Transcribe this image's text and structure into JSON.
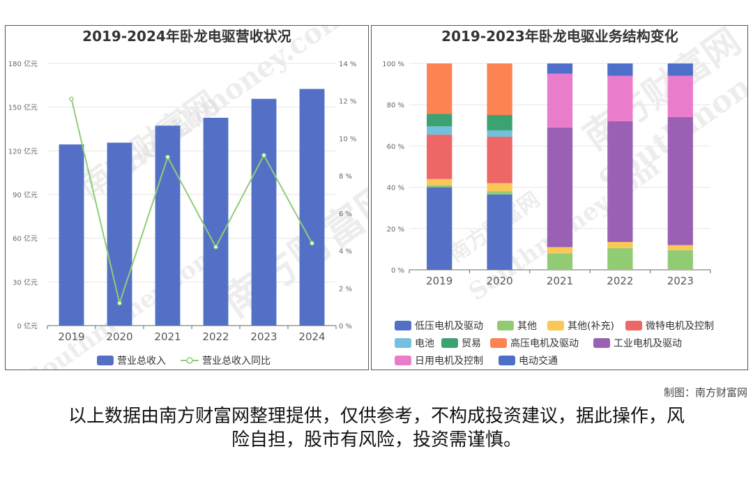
{
  "chart_data": [
    {
      "type": "bar+line",
      "title": "2019-2024年卧龙电驱营收状况",
      "categories": [
        "2019",
        "2020",
        "2021",
        "2022",
        "2023",
        "2024"
      ],
      "series": [
        {
          "name": "营业总收入",
          "type": "bar",
          "axis": "left",
          "color": "#5470c6",
          "values": [
            124.4,
            125.6,
            137.3,
            142.7,
            155.7,
            162.5
          ]
        },
        {
          "name": "营业总收入同比",
          "type": "line",
          "axis": "right",
          "color": "#91cc75",
          "values": [
            12.1,
            1.2,
            9.0,
            4.2,
            9.1,
            4.4
          ]
        }
      ],
      "y_left": {
        "min": 0,
        "max": 180,
        "ticks": [
          "0 亿元",
          "30 亿元",
          "60 亿元",
          "90 亿元",
          "120 亿元",
          "150 亿元",
          "180 亿元"
        ]
      },
      "y_right": {
        "min": 0,
        "max": 14,
        "ticks": [
          "0 %",
          "2 %",
          "4 %",
          "6 %",
          "8 %",
          "10 %",
          "12 %",
          "14 %"
        ]
      },
      "grid": true,
      "legend": "bottom"
    },
    {
      "type": "stacked-bar",
      "title": "2019-2023年卧龙电驱业务结构变化",
      "categories": [
        "2019",
        "2020",
        "2021",
        "2022",
        "2023"
      ],
      "series": [
        {
          "name": "低压电机及驱动",
          "color": "#5470c6",
          "values": [
            40,
            36.5,
            0,
            0,
            0
          ]
        },
        {
          "name": "其他",
          "color": "#91cc75",
          "values": [
            1,
            1.5,
            8,
            10.5,
            9.5
          ]
        },
        {
          "name": "其他(补充)",
          "color": "#fac858",
          "values": [
            3,
            4,
            3,
            3,
            2.5
          ]
        },
        {
          "name": "微特电机及控制",
          "color": "#ee6666",
          "values": [
            21.5,
            22.5,
            0,
            0,
            0
          ]
        },
        {
          "name": "电池",
          "color": "#73c0de",
          "values": [
            4,
            3,
            0,
            0,
            0
          ]
        },
        {
          "name": "贸易",
          "color": "#3ba272",
          "values": [
            6,
            7.5,
            0,
            0,
            0
          ]
        },
        {
          "name": "高压电机及驱动",
          "color": "#fc8452",
          "values": [
            24.5,
            25,
            0,
            0,
            0
          ]
        },
        {
          "name": "工业电机及驱动",
          "color": "#9a60b4",
          "values": [
            0,
            0,
            58,
            58.5,
            62
          ]
        },
        {
          "name": "日用电机及控制",
          "color": "#ea7ccc",
          "values": [
            0,
            0,
            26,
            22,
            20
          ]
        },
        {
          "name": "电动交通",
          "color": "#4e6fc9",
          "values": [
            0,
            0,
            5,
            6,
            6
          ]
        }
      ],
      "y": {
        "min": 0,
        "max": 100,
        "ticks": [
          "0 %",
          "20 %",
          "40 %",
          "60 %",
          "80 %",
          "100 %"
        ]
      },
      "grid": true,
      "legend": "bottom"
    }
  ],
  "watermark": {
    "cn": "南方财富网",
    "en": "Southmoney.com"
  },
  "credit": "制图：南方财富网",
  "disclaimer": {
    "line1": "以上数据由南方财富网整理提供，仅供参考，不构成投资建议，据此操作，风",
    "line2": "险自担，股市有风险，投资需谨慎。"
  }
}
